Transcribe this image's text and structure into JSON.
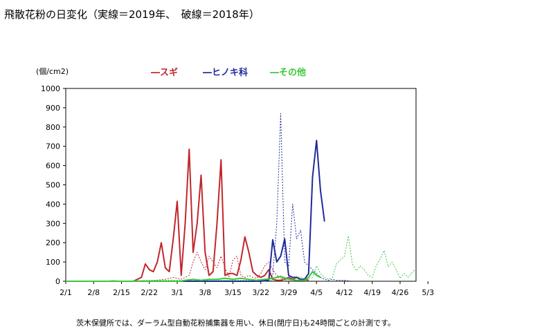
{
  "title": "飛散花粉の日変化（実線＝2019年、　破線＝2018年）",
  "unit_label": "(個/cm2)",
  "footnote": "茨木保健所では、ダーラム型自動花粉捕集器を用い、休日(閉庁日)も24時間ごとの計測です。",
  "legend": [
    {
      "label": "―スギ",
      "color": "#c0262c"
    },
    {
      "label": "―ヒノキ科",
      "color": "#1f2a9c"
    },
    {
      "label": "―その他",
      "color": "#38c838"
    }
  ],
  "chart_data": {
    "type": "line",
    "x_range": [
      0,
      88
    ],
    "ylim": [
      0,
      1000
    ],
    "y_ticks": [
      0,
      100,
      200,
      300,
      400,
      500,
      600,
      700,
      800,
      900,
      1000
    ],
    "x_tick_days": [
      0,
      7,
      14,
      21,
      28,
      35,
      42,
      49,
      56,
      63,
      70,
      77,
      84,
      91
    ],
    "x_tick_labels": [
      "2/1",
      "2/8",
      "2/15",
      "2/22",
      "3/1",
      "3/8",
      "3/15",
      "3/22",
      "3/29",
      "4/5",
      "4/12",
      "4/19",
      "4/26",
      "5/3"
    ],
    "series": [
      {
        "color": "#c0262c",
        "style": "solid",
        "points": [
          [
            0,
            0
          ],
          [
            10,
            0
          ],
          [
            17,
            0
          ],
          [
            18,
            10
          ],
          [
            19,
            20
          ],
          [
            20,
            90
          ],
          [
            21,
            60
          ],
          [
            22,
            50
          ],
          [
            23,
            100
          ],
          [
            24,
            200
          ],
          [
            25,
            70
          ],
          [
            26,
            50
          ],
          [
            27,
            220
          ],
          [
            28,
            415
          ],
          [
            29,
            30
          ],
          [
            30,
            300
          ],
          [
            31,
            685
          ],
          [
            32,
            150
          ],
          [
            33,
            300
          ],
          [
            34,
            550
          ],
          [
            35,
            150
          ],
          [
            36,
            30
          ],
          [
            37,
            50
          ],
          [
            38,
            300
          ],
          [
            39,
            630
          ],
          [
            40,
            30
          ],
          [
            41,
            40
          ],
          [
            42,
            40
          ],
          [
            43,
            30
          ],
          [
            44,
            110
          ],
          [
            45,
            230
          ],
          [
            46,
            150
          ],
          [
            47,
            50
          ],
          [
            48,
            30
          ],
          [
            49,
            20
          ],
          [
            50,
            30
          ],
          [
            51,
            60
          ],
          [
            52,
            10
          ],
          [
            53,
            5
          ],
          [
            54,
            5
          ],
          [
            55,
            10
          ],
          [
            56,
            20
          ],
          [
            57,
            10
          ],
          [
            58,
            20
          ],
          [
            59,
            10
          ],
          [
            60,
            10
          ],
          [
            61,
            5
          ]
        ]
      },
      {
        "color": "#c0262c",
        "style": "dashed",
        "points": [
          [
            20,
            0
          ],
          [
            25,
            10
          ],
          [
            27,
            20
          ],
          [
            28,
            15
          ],
          [
            29,
            10
          ],
          [
            30,
            20
          ],
          [
            31,
            30
          ],
          [
            32,
            100
          ],
          [
            33,
            150
          ],
          [
            34,
            100
          ],
          [
            35,
            60
          ],
          [
            36,
            130
          ],
          [
            37,
            100
          ],
          [
            38,
            70
          ],
          [
            39,
            130
          ],
          [
            40,
            70
          ],
          [
            41,
            20
          ],
          [
            42,
            110
          ],
          [
            43,
            130
          ],
          [
            44,
            30
          ],
          [
            45,
            20
          ],
          [
            46,
            30
          ],
          [
            47,
            20
          ],
          [
            48,
            15
          ],
          [
            49,
            40
          ],
          [
            50,
            80
          ],
          [
            51,
            100
          ],
          [
            52,
            60
          ],
          [
            53,
            30
          ],
          [
            54,
            20
          ],
          [
            55,
            10
          ],
          [
            56,
            20
          ],
          [
            57,
            10
          ],
          [
            58,
            5
          ]
        ]
      },
      {
        "color": "#1f2a9c",
        "style": "solid",
        "points": [
          [
            0,
            0
          ],
          [
            49,
            0
          ],
          [
            51,
            5
          ],
          [
            52,
            215
          ],
          [
            53,
            100
          ],
          [
            54,
            130
          ],
          [
            55,
            220
          ],
          [
            56,
            30
          ],
          [
            57,
            20
          ],
          [
            58,
            20
          ],
          [
            59,
            10
          ],
          [
            60,
            10
          ],
          [
            61,
            40
          ],
          [
            62,
            540
          ],
          [
            63,
            730
          ],
          [
            64,
            470
          ],
          [
            65,
            310
          ]
        ]
      },
      {
        "color": "#1f2a9c",
        "style": "dashed",
        "points": [
          [
            45,
            0
          ],
          [
            50,
            5
          ],
          [
            51,
            10
          ],
          [
            52,
            30
          ],
          [
            53,
            300
          ],
          [
            54,
            870
          ],
          [
            55,
            100
          ],
          [
            56,
            80
          ],
          [
            57,
            400
          ],
          [
            58,
            220
          ],
          [
            59,
            265
          ],
          [
            60,
            100
          ],
          [
            61,
            80
          ],
          [
            62,
            60
          ],
          [
            63,
            40
          ],
          [
            64,
            20
          ],
          [
            65,
            10
          ],
          [
            66,
            5
          ],
          [
            67,
            10
          ],
          [
            68,
            5
          ],
          [
            70,
            5
          ],
          [
            72,
            0
          ]
        ]
      },
      {
        "color": "#38c838",
        "style": "solid",
        "points": [
          [
            0,
            0
          ],
          [
            29,
            0
          ],
          [
            30,
            5
          ],
          [
            32,
            10
          ],
          [
            34,
            5
          ],
          [
            36,
            10
          ],
          [
            38,
            10
          ],
          [
            40,
            15
          ],
          [
            42,
            10
          ],
          [
            44,
            15
          ],
          [
            46,
            10
          ],
          [
            48,
            5
          ],
          [
            50,
            10
          ],
          [
            52,
            15
          ],
          [
            54,
            25
          ],
          [
            56,
            10
          ],
          [
            58,
            5
          ],
          [
            60,
            5
          ],
          [
            61,
            20
          ],
          [
            62,
            50
          ],
          [
            63,
            30
          ],
          [
            64,
            20
          ]
        ]
      },
      {
        "color": "#38c838",
        "style": "dashed",
        "points": [
          [
            0,
            0
          ],
          [
            10,
            0
          ],
          [
            12,
            5
          ],
          [
            14,
            0
          ],
          [
            20,
            5
          ],
          [
            30,
            5
          ],
          [
            40,
            5
          ],
          [
            48,
            5
          ],
          [
            50,
            10
          ],
          [
            52,
            5
          ],
          [
            53,
            20
          ],
          [
            54,
            15
          ],
          [
            55,
            5
          ],
          [
            57,
            10
          ],
          [
            58,
            25
          ],
          [
            59,
            20
          ],
          [
            60,
            15
          ],
          [
            61,
            10
          ],
          [
            62,
            20
          ],
          [
            63,
            80
          ],
          [
            64,
            40
          ],
          [
            65,
            20
          ],
          [
            66,
            10
          ],
          [
            67,
            20
          ],
          [
            68,
            90
          ],
          [
            69,
            110
          ],
          [
            70,
            130
          ],
          [
            71,
            235
          ],
          [
            72,
            90
          ],
          [
            73,
            55
          ],
          [
            74,
            80
          ],
          [
            75,
            60
          ],
          [
            76,
            30
          ],
          [
            77,
            20
          ],
          [
            78,
            80
          ],
          [
            79,
            115
          ],
          [
            80,
            160
          ],
          [
            81,
            75
          ],
          [
            82,
            100
          ],
          [
            83,
            60
          ],
          [
            84,
            15
          ],
          [
            85,
            40
          ],
          [
            86,
            20
          ],
          [
            87,
            45
          ],
          [
            88,
            65
          ]
        ]
      }
    ]
  }
}
